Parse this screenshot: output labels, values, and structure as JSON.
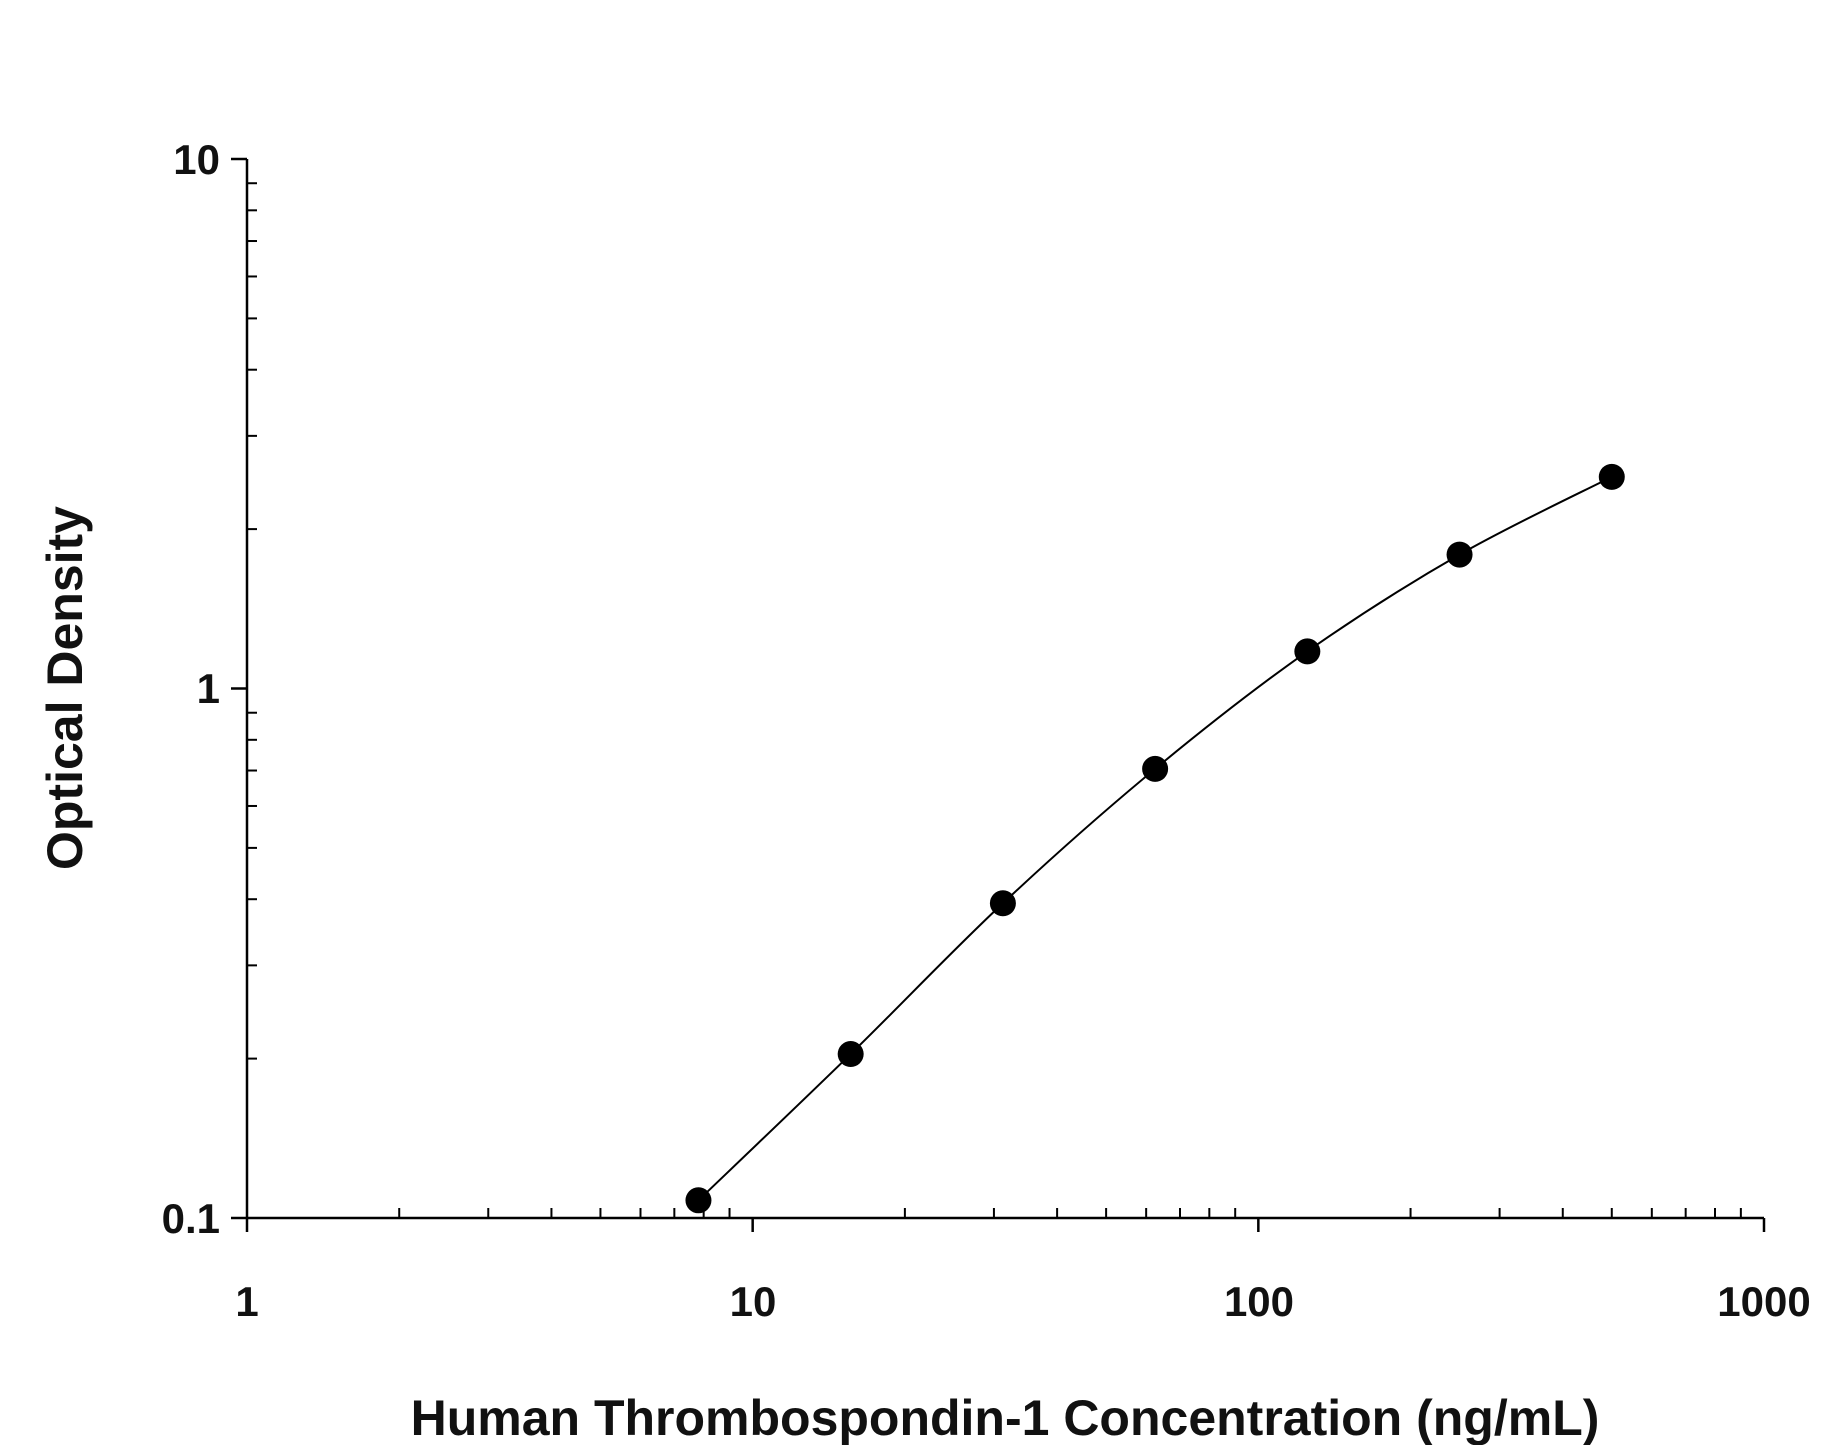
{
  "chart_data": {
    "type": "scatter",
    "title": "",
    "xlabel": "Human Thrombospondin-1 Concentration (ng/mL)",
    "ylabel": "Optical Density",
    "x_scale": "log",
    "y_scale": "log",
    "xlim": [
      1,
      1000
    ],
    "ylim": [
      0.1,
      10
    ],
    "x_tick_labels": [
      "1",
      "10",
      "100",
      "1000"
    ],
    "y_tick_labels": [
      "0.1",
      "1",
      "10"
    ],
    "grid": false,
    "legend": "none",
    "fit_line": true,
    "marker_color": "#000000",
    "series": [
      {
        "x": [
          7.8125,
          15.625,
          31.25,
          62.5,
          125,
          250,
          500
        ],
        "y": [
          0.108,
          0.204,
          0.393,
          0.705,
          1.175,
          1.79,
          2.51
        ]
      }
    ]
  }
}
